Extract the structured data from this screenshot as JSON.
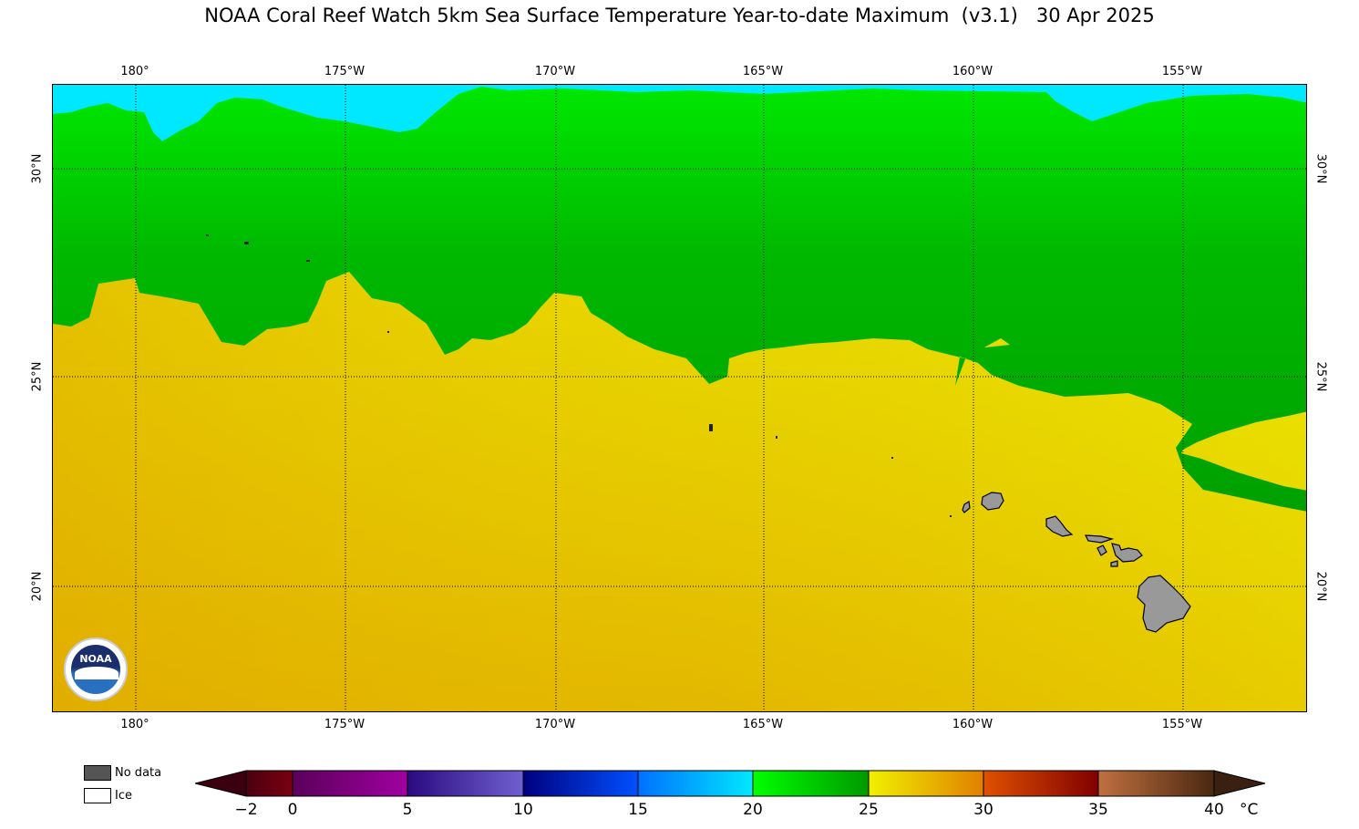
{
  "title": "NOAA Coral Reef Watch 5km Sea Surface Temperature Year-to-date Maximum  (v3.1)   30 Apr 2025",
  "map": {
    "lon_labels": [
      "180°",
      "175°W",
      "170°W",
      "165°W",
      "160°W",
      "155°W"
    ],
    "lat_labels": [
      "30°N",
      "25°N",
      "20°N"
    ],
    "land_color": "#999999",
    "grid": "dotted"
  },
  "logo": {
    "text": "NOAA"
  },
  "legend": {
    "no_data_label": "No data",
    "no_data_color": "#555555",
    "ice_label": "Ice",
    "ice_color": "#ffffff"
  },
  "colorbar": {
    "ticks": [
      "−2",
      "0",
      "5",
      "10",
      "15",
      "20",
      "25",
      "30",
      "35",
      "40"
    ],
    "unit": "°C",
    "colors": {
      "lt0": [
        "#4a0010",
        "#7a0010"
      ],
      "0-5": [
        "#5a005a",
        "#a000a0"
      ],
      "5-10": [
        "#2a0a80",
        "#7060d0"
      ],
      "10-15": [
        "#000080",
        "#0050ff"
      ],
      "15-20": [
        "#0070ff",
        "#00e8ff"
      ],
      "20-25": [
        "#00ff00",
        "#009900"
      ],
      "25-30": [
        "#f0f000",
        "#e08000"
      ],
      "30-35": [
        "#e05000",
        "#800000"
      ],
      "35-40": [
        "#c07040",
        "#4a2810"
      ]
    }
  }
}
